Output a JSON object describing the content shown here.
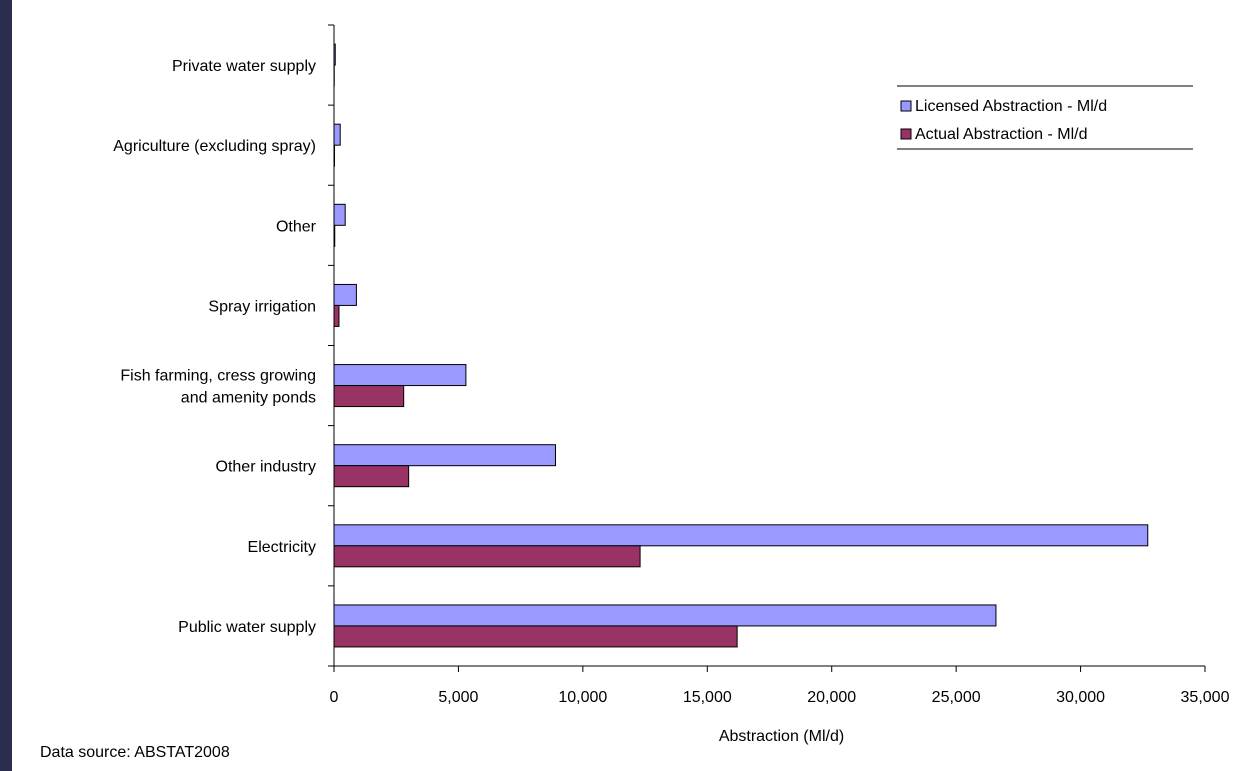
{
  "background_color": "#2c2d4e",
  "chart_data": {
    "type": "bar",
    "orientation": "horizontal",
    "title": "",
    "xlabel": "Abstraction (Ml/d)",
    "ylabel": "",
    "xlim": [
      0,
      35000
    ],
    "xticks": [
      0,
      5000,
      10000,
      15000,
      20000,
      25000,
      30000,
      35000
    ],
    "xtick_labels": [
      "0",
      "5,000",
      "10,000",
      "15,000",
      "20,000",
      "25,000",
      "30,000",
      "35,000"
    ],
    "grid": false,
    "legend_position": "top-right",
    "categories": [
      "Private water supply",
      "Agriculture (excluding spray)",
      "Other",
      "Spray irrigation",
      "Fish farming, cress growing and amenity ponds",
      "Other industry",
      "Electricity",
      "Public water supply"
    ],
    "category_lines": [
      [
        "Private water supply"
      ],
      [
        "Agriculture (excluding spray)"
      ],
      [
        "Other"
      ],
      [
        "Spray irrigation"
      ],
      [
        "Fish farming, cress growing",
        "and amenity ponds"
      ],
      [
        "Other industry"
      ],
      [
        "Electricity"
      ],
      [
        "Public water supply"
      ]
    ],
    "series": [
      {
        "name": "Licensed Abstraction - Ml/d",
        "color": "#9999ff",
        "values": [
          50,
          250,
          450,
          900,
          5300,
          8900,
          32700,
          26600
        ]
      },
      {
        "name": "Actual Abstraction - Ml/d",
        "color": "#993366",
        "values": [
          10,
          20,
          30,
          200,
          2800,
          3000,
          12300,
          16200
        ]
      }
    ]
  },
  "footer": {
    "source": "Data source: ABSTAT2008"
  }
}
